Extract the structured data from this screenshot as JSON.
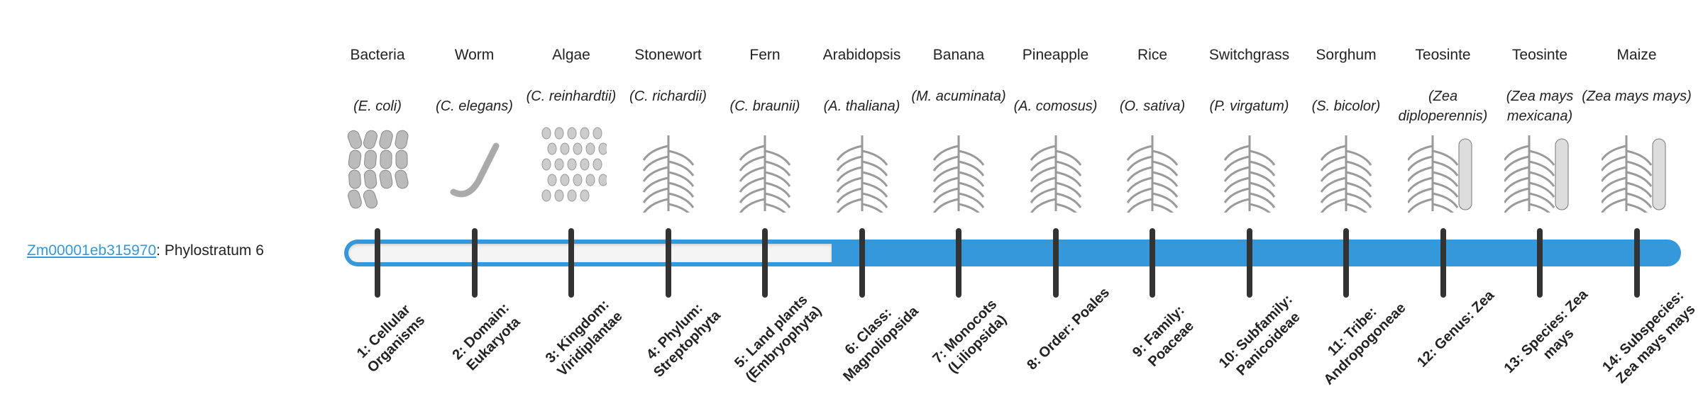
{
  "gene": {
    "id": "Zm00001eb315970",
    "separator": ": ",
    "label": "Phylostratum 6",
    "phylostratum": 6
  },
  "colors": {
    "accent": "#3498db",
    "tick": "#333333",
    "empty": "#f4f4f4"
  },
  "organisms": [
    {
      "name": "Bacteria",
      "species": "(E. coli)",
      "icon": "bacteria-icon",
      "level": "1: Cellular Organisms"
    },
    {
      "name": "Worm",
      "species": "(C. elegans)",
      "icon": "worm-icon",
      "level": "2: Domain: Eukaryota"
    },
    {
      "name": "Algae",
      "species": "(C. reinhardtii)",
      "icon": "algae-icon",
      "level": "3: Kingdom: Viridiplantae"
    },
    {
      "name": "Stonewort",
      "species": "(C. richardii)",
      "icon": "stonewort-icon",
      "level": "4: Phylum: Streptophyta"
    },
    {
      "name": "Fern",
      "species": "(C. braunii)",
      "icon": "fern-icon",
      "level": "5: Land plants (Embryophyta)"
    },
    {
      "name": "Arabidopsis",
      "species": "(A. thaliana)",
      "icon": "arabidopsis-icon",
      "level": "6: Class: Magnoliopsida"
    },
    {
      "name": "Banana",
      "species": "(M. acuminata)",
      "icon": "banana-icon",
      "level": "7: Monocots (Liliopsida)"
    },
    {
      "name": "Pineapple",
      "species": "(A. comosus)",
      "icon": "pineapple-icon",
      "level": "8: Order: Poales"
    },
    {
      "name": "Rice",
      "species": "(O. sativa)",
      "icon": "rice-icon",
      "level": "9: Family: Poaceae"
    },
    {
      "name": "Switchgrass",
      "species": "(P. virgatum)",
      "icon": "switchgrass-icon",
      "level": "10: Subfamily: Panicoideae"
    },
    {
      "name": "Sorghum",
      "species": "(S. bicolor)",
      "icon": "sorghum-icon",
      "level": "11: Tribe: Andropogoneae"
    },
    {
      "name": "Teosinte",
      "species": "(Zea diploperennis)",
      "icon": "teosinte-icon",
      "level": "12: Genus: Zea"
    },
    {
      "name": "Teosinte",
      "species": "(Zea mays mexicana)",
      "icon": "teosinte-icon",
      "level": "13: Species: Zea mays"
    },
    {
      "name": "Maize",
      "species": "(Zea mays mays)",
      "icon": "maize-icon",
      "level": "14: Subspecies: Zea mays mays"
    }
  ]
}
